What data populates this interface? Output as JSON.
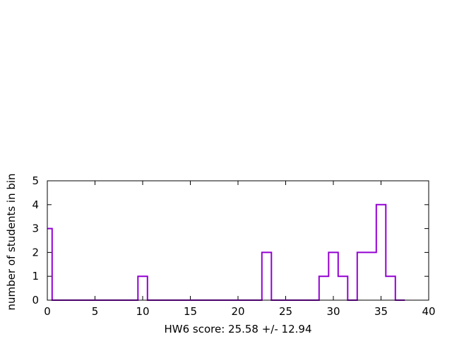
{
  "chart_data": {
    "type": "step",
    "xlabel": "HW6 score: 25.58 +/- 12.94",
    "ylabel": "number of students in bin",
    "xlim": [
      0,
      40
    ],
    "ylim": [
      0,
      5
    ],
    "xticks": [
      "0",
      "5",
      "10",
      "15",
      "20",
      "25",
      "30",
      "35",
      "40"
    ],
    "yticks": [
      "0",
      "1",
      "2",
      "3",
      "4",
      "5"
    ],
    "grid": false,
    "line_color": "#9400d3",
    "bins": [
      {
        "x": 0,
        "count": 3
      },
      {
        "x": 1,
        "count": 0
      },
      {
        "x": 2,
        "count": 0
      },
      {
        "x": 3,
        "count": 0
      },
      {
        "x": 4,
        "count": 0
      },
      {
        "x": 5,
        "count": 0
      },
      {
        "x": 6,
        "count": 0
      },
      {
        "x": 7,
        "count": 0
      },
      {
        "x": 8,
        "count": 0
      },
      {
        "x": 9,
        "count": 0
      },
      {
        "x": 10,
        "count": 1
      },
      {
        "x": 11,
        "count": 0
      },
      {
        "x": 12,
        "count": 0
      },
      {
        "x": 13,
        "count": 0
      },
      {
        "x": 14,
        "count": 0
      },
      {
        "x": 15,
        "count": 0
      },
      {
        "x": 16,
        "count": 0
      },
      {
        "x": 17,
        "count": 0
      },
      {
        "x": 18,
        "count": 0
      },
      {
        "x": 19,
        "count": 0
      },
      {
        "x": 20,
        "count": 0
      },
      {
        "x": 21,
        "count": 0
      },
      {
        "x": 22,
        "count": 0
      },
      {
        "x": 23,
        "count": 2
      },
      {
        "x": 24,
        "count": 0
      },
      {
        "x": 25,
        "count": 0
      },
      {
        "x": 26,
        "count": 0
      },
      {
        "x": 27,
        "count": 0
      },
      {
        "x": 28,
        "count": 0
      },
      {
        "x": 29,
        "count": 1
      },
      {
        "x": 30,
        "count": 2
      },
      {
        "x": 31,
        "count": 1
      },
      {
        "x": 32,
        "count": 0
      },
      {
        "x": 33,
        "count": 2
      },
      {
        "x": 34,
        "count": 2
      },
      {
        "x": 35,
        "count": 4
      },
      {
        "x": 36,
        "count": 1
      },
      {
        "x": 37,
        "count": 0
      }
    ]
  }
}
